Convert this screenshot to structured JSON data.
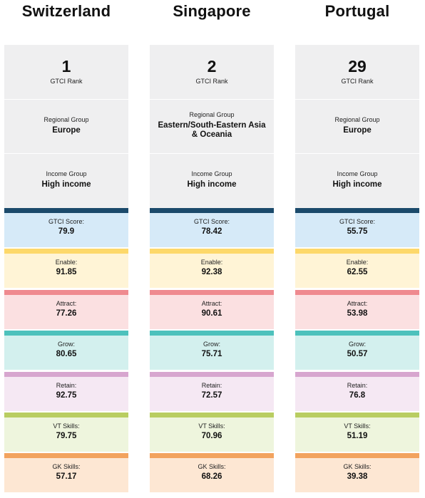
{
  "score_labels": {
    "gtci": "GTCI Score:",
    "enable": "Enable:",
    "attract": "Attract:",
    "grow": "Grow:",
    "retain": "Retain:",
    "vt": "VT Skills:",
    "gk": "GK Skills:"
  },
  "labels": {
    "rank": "GTCI Rank",
    "regional_group": "Regional Group",
    "income_group": "Income Group"
  },
  "colors": {
    "gtci": {
      "bar": "#1b4a6b",
      "bg": "#d6eaf8"
    },
    "enable": {
      "bar": "#fdd86a",
      "bg": "#fff4d6"
    },
    "attract": {
      "bar": "#ef8a8f",
      "bg": "#fbe0e1"
    },
    "grow": {
      "bar": "#4dc1bc",
      "bg": "#d3f0ee"
    },
    "retain": {
      "bar": "#d7a6cf",
      "bg": "#f5e8f3"
    },
    "vt": {
      "bar": "#b9cd61",
      "bg": "#eef5dd"
    },
    "gk": {
      "bar": "#f2a35e",
      "bg": "#fde7d3"
    }
  },
  "countries": [
    {
      "name": "Switzerland",
      "rank": "1",
      "regional_group": "Europe",
      "income_group": "High income",
      "scores": {
        "gtci": "79.9",
        "enable": "91.85",
        "attract": "77.26",
        "grow": "80.65",
        "retain": "92.75",
        "vt": "79.75",
        "gk": "57.17"
      }
    },
    {
      "name": "Singapore",
      "rank": "2",
      "regional_group": "Eastern/South-Eastern Asia & Oceania",
      "income_group": "High income",
      "scores": {
        "gtci": "78.42",
        "enable": "92.38",
        "attract": "90.61",
        "grow": "75.71",
        "retain": "72.57",
        "vt": "70.96",
        "gk": "68.26"
      }
    },
    {
      "name": "Portugal",
      "rank": "29",
      "regional_group": "Europe",
      "income_group": "High income",
      "scores": {
        "gtci": "55.75",
        "enable": "62.55",
        "attract": "53.98",
        "grow": "50.57",
        "retain": "76.8",
        "vt": "51.19",
        "gk": "39.38"
      }
    }
  ]
}
